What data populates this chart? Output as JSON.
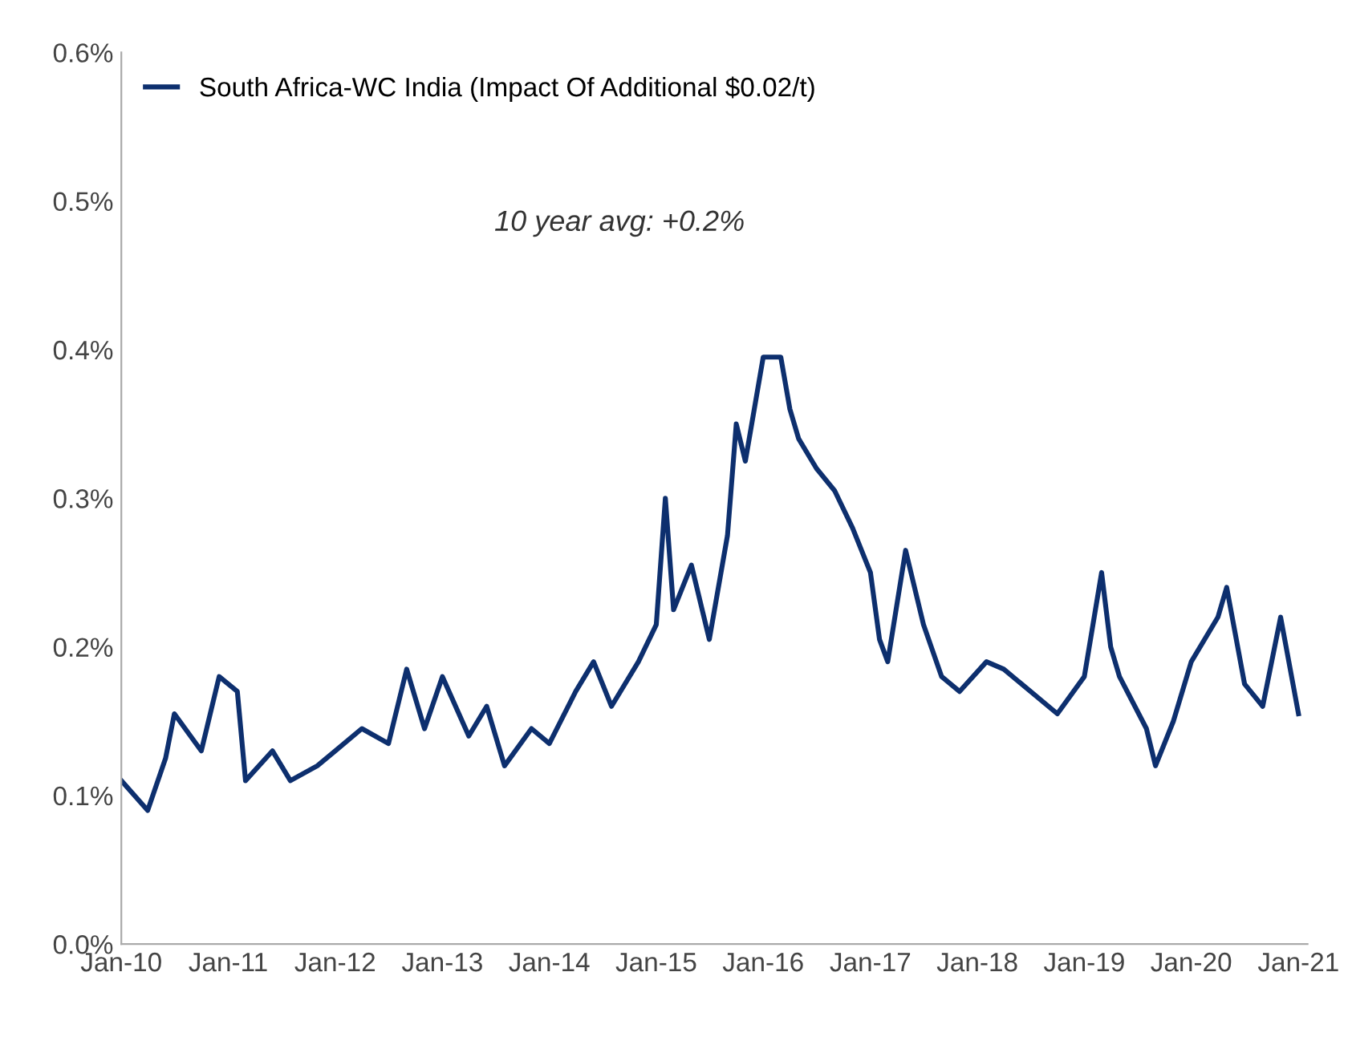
{
  "chart_data": {
    "type": "line",
    "x": [
      "2010-01",
      "2010-04",
      "2010-06",
      "2010-07",
      "2010-10",
      "2010-12",
      "2011-02",
      "2011-03",
      "2011-06",
      "2011-08",
      "2011-11",
      "2012-01",
      "2012-04",
      "2012-07",
      "2012-09",
      "2012-11",
      "2013-01",
      "2013-04",
      "2013-06",
      "2013-08",
      "2013-11",
      "2014-01",
      "2014-04",
      "2014-06",
      "2014-08",
      "2014-11",
      "2015-01",
      "2015-02",
      "2015-03",
      "2015-05",
      "2015-07",
      "2015-09",
      "2015-10",
      "2015-11",
      "2016-01",
      "2016-03",
      "2016-04",
      "2016-05",
      "2016-07",
      "2016-09",
      "2016-11",
      "2017-01",
      "2017-02",
      "2017-03",
      "2017-05",
      "2017-07",
      "2017-09",
      "2017-11",
      "2018-02",
      "2018-04",
      "2018-06",
      "2018-10",
      "2019-01",
      "2019-03",
      "2019-04",
      "2019-05",
      "2019-08",
      "2019-09",
      "2019-11",
      "2020-01",
      "2020-04",
      "2020-05",
      "2020-07",
      "2020-09",
      "2020-11",
      "2021-01"
    ],
    "series": [
      {
        "name": "South Africa-WC India (Impact Of Additional $0.02/t)",
        "color": "#0d2f6e",
        "values": [
          0.11,
          0.09,
          0.125,
          0.155,
          0.13,
          0.18,
          0.17,
          0.11,
          0.13,
          0.11,
          0.12,
          0.13,
          0.145,
          0.135,
          0.185,
          0.145,
          0.18,
          0.14,
          0.16,
          0.12,
          0.145,
          0.135,
          0.17,
          0.19,
          0.16,
          0.19,
          0.215,
          0.3,
          0.225,
          0.255,
          0.205,
          0.275,
          0.35,
          0.325,
          0.395,
          0.395,
          0.36,
          0.34,
          0.32,
          0.305,
          0.28,
          0.25,
          0.205,
          0.19,
          0.265,
          0.215,
          0.18,
          0.17,
          0.19,
          0.185,
          0.175,
          0.155,
          0.18,
          0.25,
          0.2,
          0.18,
          0.145,
          0.12,
          0.15,
          0.19,
          0.22,
          0.24,
          0.175,
          0.16,
          0.22,
          0.155
        ]
      }
    ],
    "xlim": [
      "2010-01",
      "2021-02"
    ],
    "xticks": [
      {
        "value": "2010-01",
        "label": "Jan-10"
      },
      {
        "value": "2011-01",
        "label": "Jan-11"
      },
      {
        "value": "2012-01",
        "label": "Jan-12"
      },
      {
        "value": "2013-01",
        "label": "Jan-13"
      },
      {
        "value": "2014-01",
        "label": "Jan-14"
      },
      {
        "value": "2015-01",
        "label": "Jan-15"
      },
      {
        "value": "2016-01",
        "label": "Jan-16"
      },
      {
        "value": "2017-01",
        "label": "Jan-17"
      },
      {
        "value": "2018-01",
        "label": "Jan-18"
      },
      {
        "value": "2019-01",
        "label": "Jan-19"
      },
      {
        "value": "2020-01",
        "label": "Jan-20"
      },
      {
        "value": "2021-01",
        "label": "Jan-21"
      }
    ],
    "ylim": [
      0,
      0.6
    ],
    "yticks": [
      {
        "value": 0,
        "label": "0.0%"
      },
      {
        "value": 0.1,
        "label": "0.1%"
      },
      {
        "value": 0.2,
        "label": "0.2%"
      },
      {
        "value": 0.3,
        "label": "0.3%"
      },
      {
        "value": 0.4,
        "label": "0.4%"
      },
      {
        "value": 0.5,
        "label": "0.5%"
      },
      {
        "value": 0.6,
        "label": "0.6%"
      }
    ],
    "annotations": [
      "10 year avg: +0.2%"
    ],
    "legend": "top left",
    "grid": false,
    "marker": "none",
    "line_style": "solid"
  }
}
